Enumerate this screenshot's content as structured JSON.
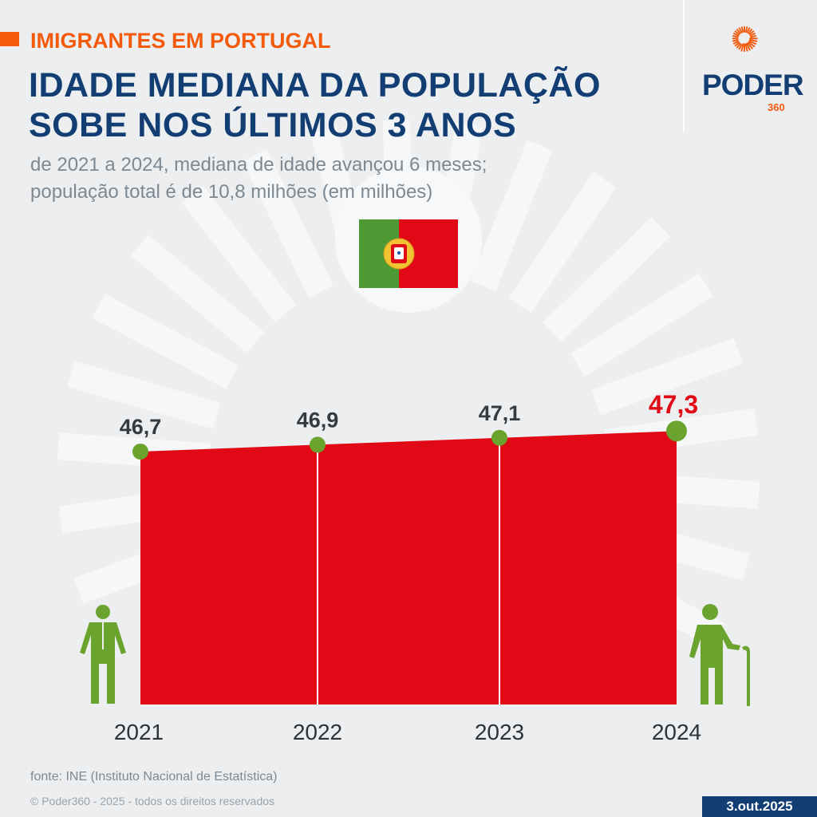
{
  "header": {
    "kicker": "IMIGRANTES EM PORTUGAL",
    "title_line1": "IDADE MEDIANA DA POPULAÇÃO",
    "title_line2": "SOBE NOS ÚLTIMOS 3 ANOS",
    "subtitle_line1": "de 2021 a 2024, mediana de idade avançou 6 meses;",
    "subtitle_line2": "população total é de 10,8 milhões (em milhões)"
  },
  "logo": {
    "name": "PODER",
    "suffix": "360"
  },
  "colors": {
    "accent": "#f35a0c",
    "navy": "#123e73",
    "area": "#e00915",
    "marker": "#6aa42f",
    "highlight": "#e00915"
  },
  "chart_data": {
    "type": "area",
    "categories": [
      "2021",
      "2022",
      "2023",
      "2024"
    ],
    "values": [
      46.7,
      46.9,
      47.1,
      47.3
    ],
    "labels": [
      "46,7",
      "46,9",
      "47,1",
      "47,3"
    ],
    "highlight_index": 3,
    "grid": false
  },
  "footer": {
    "source": "fonte: INE (Instituto Nacional de Estatística)",
    "copyright": "© Poder360 - 2025 - todos os direitos reservados",
    "date": "3.out.2025"
  }
}
